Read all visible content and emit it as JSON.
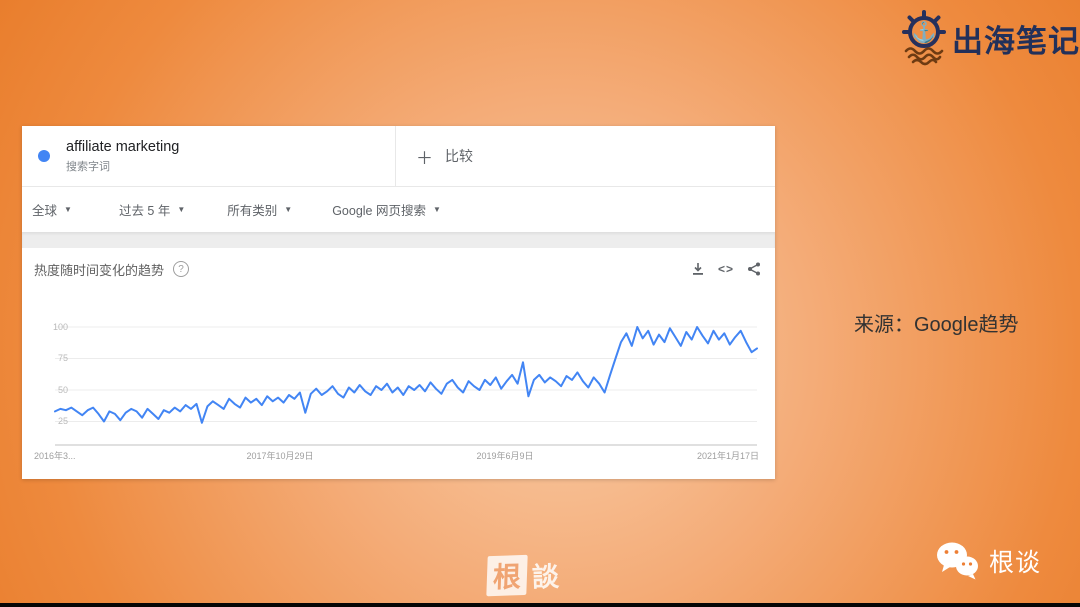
{
  "brand": {
    "name": "出海笔记"
  },
  "source_note": "来源：Google趋势",
  "watermark": {
    "left": "根",
    "right": "談"
  },
  "wechat_label": "根谈",
  "trends": {
    "term": {
      "name": "affiliate marketing",
      "type": "搜索字词"
    },
    "plus": "＋",
    "compare_label": "比较",
    "filters": [
      {
        "label": "全球"
      },
      {
        "label": "过去 5 年"
      },
      {
        "label": "所有类别"
      },
      {
        "label": "Google 网页搜索"
      }
    ],
    "chart_title": "热度随时间变化的趋势",
    "help_glyph": "?",
    "embed_glyph": "<>"
  },
  "chart_data": {
    "type": "line",
    "title": "热度随时间变化的趋势",
    "series_name": "affiliate marketing",
    "x_range": [
      "2016年3月",
      "2021年3月"
    ],
    "x_tick_labels": [
      "2016年3...",
      "2017年10月29日",
      "2019年6月9日",
      "2021年1月17日"
    ],
    "y_ticks": [
      "25",
      "50",
      "75",
      "100"
    ],
    "ylim": [
      0,
      100
    ],
    "grid": true,
    "line_color": "#4285f4",
    "values": [
      33,
      35,
      34,
      36,
      33,
      30,
      34,
      36,
      31,
      25,
      33,
      31,
      26,
      32,
      35,
      33,
      28,
      35,
      31,
      27,
      34,
      32,
      36,
      33,
      38,
      35,
      39,
      24,
      37,
      41,
      38,
      35,
      43,
      39,
      36,
      44,
      40,
      43,
      38,
      45,
      41,
      44,
      40,
      46,
      43,
      48,
      32,
      47,
      51,
      46,
      49,
      53,
      47,
      44,
      52,
      48,
      54,
      49,
      46,
      53,
      50,
      55,
      48,
      52,
      46,
      53,
      50,
      54,
      49,
      56,
      51,
      47,
      55,
      58,
      52,
      48,
      57,
      53,
      50,
      58,
      54,
      60,
      51,
      57,
      62,
      55,
      72,
      45,
      58,
      62,
      56,
      60,
      57,
      53,
      61,
      58,
      64,
      57,
      52,
      60,
      55,
      48,
      62,
      75,
      88,
      95,
      85,
      100,
      91,
      97,
      86,
      94,
      88,
      99,
      92,
      85,
      96,
      90,
      100,
      93,
      87,
      97,
      90,
      95,
      86,
      92,
      97,
      88,
      80,
      83
    ]
  }
}
